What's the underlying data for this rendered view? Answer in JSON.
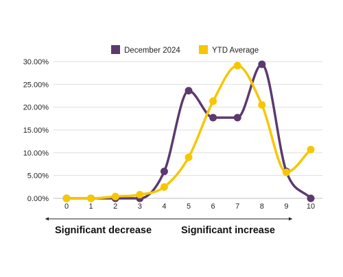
{
  "chart_data": {
    "type": "line",
    "x": [
      0,
      1,
      2,
      3,
      4,
      5,
      6,
      7,
      8,
      9,
      10
    ],
    "series": [
      {
        "name": "December 2024",
        "color": "#5b3a6e",
        "values": [
          0.0,
          0.0,
          0.0,
          0.0,
          5.9,
          23.6,
          17.7,
          17.7,
          29.4,
          5.9,
          0.0
        ]
      },
      {
        "name": "YTD Average",
        "color": "#f6c700",
        "values": [
          0.0,
          0.0,
          0.4,
          0.8,
          2.5,
          9.0,
          21.3,
          29.1,
          20.5,
          5.7,
          10.7
        ]
      }
    ],
    "yticks": [
      "0.00%",
      "5.00%",
      "10.00%",
      "15.00%",
      "20.00%",
      "25.00%",
      "30.00%"
    ],
    "xticks": [
      "0",
      "1",
      "2",
      "3",
      "4",
      "5",
      "6",
      "7",
      "8",
      "9",
      "10"
    ],
    "ylim": [
      0,
      30
    ],
    "xlim": [
      0,
      10
    ],
    "grid": "horizontal",
    "legend_position": "top",
    "annotations": {
      "left": "Significant decrease",
      "right": "Significant increase"
    }
  }
}
